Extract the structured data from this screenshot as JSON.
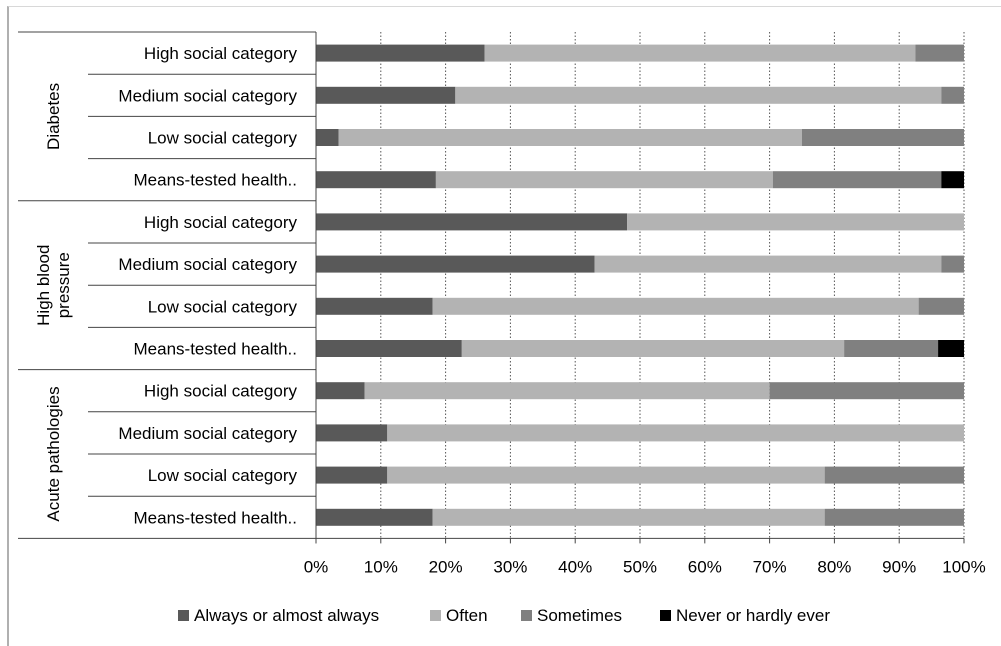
{
  "chart_data": {
    "type": "bar",
    "orientation": "horizontal",
    "stacked": true,
    "title": "",
    "xlabel": "",
    "ylabel": "",
    "xlim": [
      0,
      100
    ],
    "x_tick_labels": [
      "0%",
      "10%",
      "20%",
      "30%",
      "40%",
      "50%",
      "60%",
      "70%",
      "80%",
      "90%",
      "100%"
    ],
    "grid": "vertical dotted",
    "legend_position": "bottom",
    "groups": [
      {
        "label": "Diabetes",
        "label_lines": [
          "Diabetes"
        ],
        "categories": [
          "High social category",
          "Medium social category",
          "Low social category",
          "Means-tested health.."
        ]
      },
      {
        "label": "High blood pressure",
        "label_lines": [
          "High blood",
          "pressure"
        ],
        "categories": [
          "High social category",
          "Medium social category",
          "Low social category",
          "Means-tested health.."
        ]
      },
      {
        "label": "Acute pathologies",
        "label_lines": [
          "Acute pathologies"
        ],
        "categories": [
          "High social category",
          "Medium social category",
          "Low social category",
          "Means-tested health.."
        ]
      }
    ],
    "series": [
      {
        "name": "Always or almost always",
        "color": "#595959",
        "values": [
          26,
          21.5,
          3.5,
          18.5,
          48,
          43,
          18,
          22.5,
          7.5,
          11,
          11,
          18
        ]
      },
      {
        "name": "Often",
        "color": "#b3b3b3",
        "values": [
          66.5,
          75,
          71.5,
          52,
          52,
          53.5,
          75,
          59,
          62.5,
          89,
          67.5,
          60.5
        ]
      },
      {
        "name": "Sometimes",
        "color": "#808080",
        "values": [
          7.5,
          3.5,
          25,
          26,
          0,
          3.5,
          7,
          14.5,
          30,
          0,
          21.5,
          21.5
        ]
      },
      {
        "name": "Never or hardly ever",
        "color": "#000000",
        "values": [
          0,
          0,
          0,
          3.5,
          0,
          0,
          0,
          4,
          0,
          0,
          0,
          0
        ]
      }
    ]
  }
}
